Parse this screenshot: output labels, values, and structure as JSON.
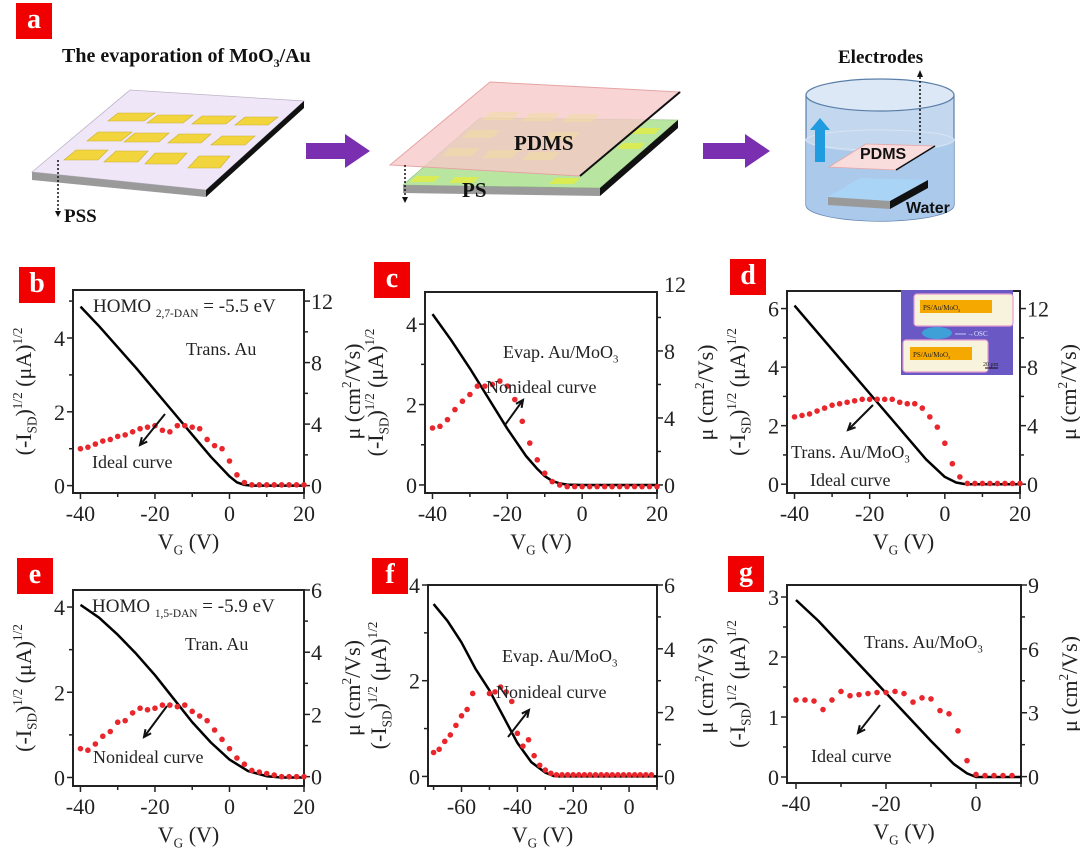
{
  "figure": {
    "panel_a": {
      "label": "a",
      "title_text": "The evaporation of MoO",
      "title_sub": "3",
      "title_suffix": "/Au",
      "pss_label": "PSS",
      "pdms_label": "PDMS",
      "ps_label": "PS",
      "electrodes_label": "Electrodes",
      "pdms_label_2": "PDMS",
      "water_label": "Water",
      "colors": {
        "arrow": "#7a2fb0",
        "gold": "#f2d53c",
        "substrate": "#efe6f7",
        "pdms": "#f6c9c9",
        "ps": "#b8e6a0",
        "water": "#a9c8ea",
        "lift_arrow": "#1f9be0"
      }
    }
  },
  "chart_data": [
    {
      "panel": "b",
      "type": "line+scatter",
      "xlabel": "V",
      "xlabel_sub": "G",
      "xlabel_unit": " (V)",
      "ylabel_left": "(-I",
      "ylabel_left_sub": "SD",
      "ylabel_left_rest": ")",
      "ylabel_left_sup": "1/2",
      "ylabel_left_unit": " (μA)",
      "ylabel_left_sup2": "1/2",
      "ylabel_right": "μ (cm",
      "ylabel_right_sup": "2",
      "ylabel_right_unit": "/Vs)",
      "xlim": [
        -42,
        20
      ],
      "ylim_left": [
        -0.2,
        5.3
      ],
      "ylim_right": [
        -0.48,
        12.72
      ],
      "xticks": [
        -40,
        -20,
        0,
        20
      ],
      "yticks_left": [
        0,
        2,
        4
      ],
      "yticks_right": [
        0,
        4,
        8,
        12
      ],
      "annotations": [
        {
          "text": "HOMO ",
          "sub": "2,7-DAN",
          "suffix": " = -5.5 eV"
        },
        {
          "text": "Trans. Au"
        },
        {
          "text": "Ideal curve"
        }
      ],
      "series": [
        {
          "name": "sqrt(-ISD)",
          "axis": "left",
          "style": "line",
          "color": "#000000",
          "x": [
            -40,
            -35,
            -30,
            -25,
            -20,
            -15,
            -10,
            -5,
            0,
            2,
            4,
            6,
            10,
            15,
            20
          ],
          "y": [
            4.85,
            4.32,
            3.75,
            3.18,
            2.58,
            1.98,
            1.38,
            0.78,
            0.25,
            0.09,
            0.02,
            0.0,
            0.0,
            0.0,
            0.0
          ]
        },
        {
          "name": "mobility",
          "axis": "right",
          "style": "scatter",
          "color": "#e8262b",
          "x": [
            -40,
            -38,
            -36,
            -34,
            -32,
            -30,
            -28,
            -26,
            -24,
            -22,
            -20,
            -18,
            -16,
            -14,
            -12,
            -10,
            -8,
            -6,
            -4,
            -2,
            0,
            2,
            4,
            6,
            8,
            10,
            12,
            14,
            16,
            18,
            20
          ],
          "y": [
            2.4,
            2.5,
            2.7,
            2.9,
            3.0,
            3.2,
            3.3,
            3.5,
            3.7,
            3.8,
            3.9,
            3.6,
            3.5,
            3.9,
            3.9,
            3.8,
            3.7,
            3.0,
            2.6,
            2.4,
            1.6,
            0.7,
            0.2,
            0.05,
            0.05,
            0.05,
            0.05,
            0.05,
            0.05,
            0.05,
            0.05
          ]
        }
      ]
    },
    {
      "panel": "c",
      "type": "line+scatter",
      "xlabel": "V",
      "xlabel_sub": "G",
      "xlabel_unit": " (V)",
      "ylabel_left": "(-I",
      "ylabel_left_sub": "SD",
      "ylabel_left_rest": ")",
      "ylabel_left_sup": "1/2",
      "ylabel_left_unit": " (μA)",
      "ylabel_left_sup2": "1/2",
      "ylabel_right": "μ (cm",
      "ylabel_right_sup": "2",
      "ylabel_right_unit": "/Vs)",
      "xlim": [
        -42,
        20
      ],
      "ylim_left": [
        -0.2,
        4.8
      ],
      "ylim_right": [
        -0.48,
        11.52
      ],
      "xticks": [
        -40,
        -20,
        0,
        20
      ],
      "yticks_left": [
        0,
        2,
        4
      ],
      "yticks_right": [
        0,
        4,
        8,
        12
      ],
      "annotations": [
        {
          "text": "Evap. Au/MoO",
          "sub": "3",
          "suffix": ""
        },
        {
          "text": "Nonideal curve"
        }
      ],
      "series": [
        {
          "name": "sqrt(-ISD)",
          "axis": "left",
          "style": "line",
          "color": "#000000",
          "x": [
            -40,
            -35,
            -30,
            -25,
            -20,
            -15,
            -12,
            -10,
            -8,
            -6,
            -4,
            0,
            5,
            10,
            20
          ],
          "y": [
            4.25,
            3.6,
            2.9,
            2.15,
            1.4,
            0.72,
            0.4,
            0.22,
            0.1,
            0.04,
            0.01,
            0.0,
            0.0,
            0.0,
            0.0
          ]
        },
        {
          "name": "mobility",
          "axis": "right",
          "style": "scatter",
          "color": "#e8262b",
          "x": [
            -40,
            -38,
            -36,
            -34,
            -32,
            -30,
            -28,
            -26,
            -24,
            -22,
            -20,
            -18,
            -16,
            -14,
            -12,
            -10,
            -8,
            -6,
            -4,
            -2,
            0,
            2,
            4,
            6,
            8,
            10,
            12,
            14,
            16,
            18,
            20
          ],
          "y": [
            3.4,
            3.5,
            3.9,
            4.5,
            5.0,
            5.4,
            5.9,
            5.9,
            6.0,
            6.2,
            5.9,
            5.1,
            3.8,
            2.5,
            1.5,
            0.7,
            0.2,
            0.0,
            -0.1,
            -0.1,
            -0.1,
            -0.1,
            -0.1,
            -0.1,
            -0.1,
            -0.1,
            -0.1,
            -0.1,
            -0.1,
            -0.1,
            -0.1
          ]
        }
      ]
    },
    {
      "panel": "d",
      "type": "line+scatter",
      "xlabel": "V",
      "xlabel_sub": "G",
      "xlabel_unit": " (V)",
      "ylabel_left": "(-I",
      "ylabel_left_sub": "SD",
      "ylabel_left_rest": ")",
      "ylabel_left_sup": "1/2",
      "ylabel_left_unit": " (μA)",
      "ylabel_left_sup2": "1/2",
      "ylabel_right": "μ (cm",
      "ylabel_right_sup": "2",
      "ylabel_right_unit": "/Vs)",
      "xlim": [
        -42,
        20
      ],
      "ylim_left": [
        -0.3,
        6.6
      ],
      "ylim_right": [
        -0.6,
        13.2
      ],
      "xticks": [
        -40,
        -20,
        0,
        20
      ],
      "yticks_left": [
        0,
        2,
        4,
        6
      ],
      "yticks_right": [
        0,
        4,
        8,
        12
      ],
      "annotations": [
        {
          "text": "Trans. Au/MoO",
          "sub": "3",
          "suffix": ""
        },
        {
          "text": "Ideal curve"
        }
      ],
      "inset": {
        "label_top": "PS/Au/MoO",
        "label_top_sub": "3",
        "label_bottom": "PS/Au/MoO",
        "label_bottom_sub": "3",
        "osc_label": "OSC",
        "scale_label": "20 μm"
      },
      "series": [
        {
          "name": "sqrt(-ISD)",
          "axis": "left",
          "style": "line",
          "color": "#000000",
          "x": [
            -40,
            -35,
            -30,
            -25,
            -20,
            -15,
            -10,
            -5,
            0,
            3,
            5,
            6,
            10,
            15,
            20
          ],
          "y": [
            6.1,
            5.35,
            4.6,
            3.85,
            3.1,
            2.35,
            1.6,
            0.85,
            0.25,
            0.06,
            0.01,
            0.0,
            0.0,
            0.0,
            0.0
          ]
        },
        {
          "name": "mobility",
          "axis": "right",
          "style": "scatter",
          "color": "#e8262b",
          "x": [
            -40,
            -38,
            -36,
            -34,
            -32,
            -30,
            -28,
            -26,
            -24,
            -22,
            -20,
            -18,
            -16,
            -14,
            -12,
            -10,
            -8,
            -6,
            -4,
            -2,
            0,
            2,
            4,
            6,
            8,
            10,
            12,
            14,
            16,
            18,
            20
          ],
          "y": [
            4.6,
            4.7,
            4.8,
            5.0,
            5.2,
            5.4,
            5.5,
            5.6,
            5.7,
            5.8,
            5.8,
            5.8,
            5.8,
            5.8,
            5.6,
            5.5,
            5.5,
            5.2,
            4.6,
            3.9,
            2.8,
            1.4,
            0.5,
            0.05,
            0.05,
            0.05,
            0.05,
            0.05,
            0.05,
            0.05,
            0.05
          ]
        }
      ]
    },
    {
      "panel": "e",
      "type": "line+scatter",
      "xlabel": "V",
      "xlabel_sub": "G",
      "xlabel_unit": " (V)",
      "ylabel_left": "(-I",
      "ylabel_left_sub": "SD",
      "ylabel_left_rest": ")",
      "ylabel_left_sup": "1/2",
      "ylabel_left_unit": " (μA)",
      "ylabel_left_sup2": "1/2",
      "ylabel_right": "μ (cm",
      "ylabel_right_sup": "2",
      "ylabel_right_unit": "/Vs)",
      "xlim": [
        -42,
        20
      ],
      "ylim_left": [
        -0.2,
        4.4
      ],
      "ylim_right": [
        -0.3,
        6.0
      ],
      "xticks": [
        -40,
        -20,
        0,
        20
      ],
      "yticks_left": [
        0,
        2,
        4
      ],
      "yticks_right": [
        0,
        2,
        4,
        6
      ],
      "annotations": [
        {
          "text": "HOMO ",
          "sub": "1,5-DAN",
          "suffix": " = -5.9 eV"
        },
        {
          "text": "Tran. Au"
        },
        {
          "text": "Nonideal curve"
        }
      ],
      "series": [
        {
          "name": "sqrt(-ISD)",
          "axis": "left",
          "style": "line",
          "color": "#000000",
          "x": [
            -40,
            -35,
            -30,
            -25,
            -20,
            -15,
            -10,
            -5,
            0,
            5,
            10,
            14,
            16,
            20
          ],
          "y": [
            4.05,
            3.75,
            3.35,
            2.9,
            2.4,
            1.85,
            1.3,
            0.82,
            0.42,
            0.15,
            0.03,
            0.0,
            0.0,
            0.0
          ]
        },
        {
          "name": "mobility",
          "axis": "right",
          "style": "scatter",
          "color": "#e8262b",
          "x": [
            -40,
            -38,
            -36,
            -34,
            -32,
            -30,
            -28,
            -26,
            -24,
            -22,
            -20,
            -18,
            -16,
            -14,
            -12,
            -10,
            -8,
            -6,
            -4,
            -2,
            0,
            2,
            4,
            6,
            8,
            10,
            12,
            14,
            16,
            18,
            20
          ],
          "y": [
            0.9,
            0.85,
            1.05,
            1.3,
            1.45,
            1.75,
            1.8,
            2.05,
            2.2,
            2.15,
            2.2,
            2.3,
            2.3,
            2.25,
            2.3,
            2.1,
            1.95,
            1.8,
            1.5,
            1.2,
            0.9,
            0.6,
            0.4,
            0.2,
            0.15,
            0.1,
            0.05,
            0.0,
            0.0,
            0.0,
            0.0
          ]
        }
      ]
    },
    {
      "panel": "f",
      "type": "line+scatter",
      "xlabel": "V",
      "xlabel_sub": "G",
      "xlabel_unit": " (V)",
      "ylabel_left": "(-I",
      "ylabel_left_sub": "SD",
      "ylabel_left_rest": ")",
      "ylabel_left_sup": "1/2",
      "ylabel_left_unit": " (μA)",
      "ylabel_left_sup2": "1/2",
      "ylabel_right": "μ (cm",
      "ylabel_right_sup": "2",
      "ylabel_right_unit": "/Vs)",
      "xlim": [
        -72,
        10
      ],
      "ylim_left": [
        -0.2,
        4.0
      ],
      "ylim_right": [
        -0.3,
        6.0
      ],
      "xticks": [
        -60,
        -40,
        -20,
        0
      ],
      "yticks_left": [
        0,
        2,
        4
      ],
      "yticks_right": [
        0,
        2,
        4,
        6
      ],
      "annotations": [
        {
          "text": "Evap. Au/MoO",
          "sub": "3",
          "suffix": ""
        },
        {
          "text": "Nonideal curve"
        }
      ],
      "series": [
        {
          "name": "sqrt(-ISD)",
          "axis": "left",
          "style": "line",
          "color": "#000000",
          "x": [
            -70,
            -65,
            -60,
            -55,
            -50,
            -45,
            -40,
            -35,
            -30,
            -27,
            -25,
            -20,
            -10,
            0,
            10
          ],
          "y": [
            3.6,
            3.25,
            2.8,
            2.25,
            1.8,
            1.25,
            0.7,
            0.3,
            0.08,
            0.01,
            0.0,
            0.0,
            0.0,
            0.0,
            0.0
          ]
        },
        {
          "name": "mobility",
          "axis": "right",
          "style": "scatter",
          "color": "#e8262b",
          "x": [
            -70,
            -68,
            -66,
            -64,
            -62,
            -60,
            -58,
            -56,
            -50,
            -48,
            -46,
            -44,
            -42,
            -40,
            -38,
            -36,
            -34,
            -32,
            -30,
            -28,
            -26,
            -24,
            -22,
            -20,
            -18,
            -16,
            -14,
            -12,
            -10,
            -8,
            -6,
            -4,
            -2,
            0,
            2,
            4,
            6,
            8
          ],
          "y": [
            0.75,
            0.85,
            1.1,
            1.3,
            1.6,
            1.9,
            2.1,
            2.6,
            2.6,
            2.65,
            2.8,
            2.65,
            2.35,
            1.35,
            0.95,
            1.15,
            0.65,
            0.35,
            0.2,
            0.1,
            0.05,
            0.05,
            0.05,
            0.05,
            0.05,
            0.05,
            0.05,
            0.05,
            0.05,
            0.05,
            0.05,
            0.05,
            0.05,
            0.05,
            0.05,
            0.05,
            0.05,
            0.05
          ]
        }
      ]
    },
    {
      "panel": "g",
      "type": "line+scatter",
      "xlabel": "V",
      "xlabel_sub": "G",
      "xlabel_unit": " (V)",
      "ylabel_left": "(-I",
      "ylabel_left_sub": "SD",
      "ylabel_left_rest": ")",
      "ylabel_left_sup": "1/2",
      "ylabel_left_unit": " (μA)",
      "ylabel_left_sup2": "1/2",
      "ylabel_right": "μ (cm",
      "ylabel_right_sup": "2",
      "ylabel_right_unit": "/Vs)",
      "xlim": [
        -42,
        10
      ],
      "ylim_left": [
        -0.1,
        3.2
      ],
      "ylim_right": [
        -0.3,
        9.0
      ],
      "xticks": [
        -40,
        -20,
        0
      ],
      "yticks_left": [
        0,
        1,
        2,
        3
      ],
      "yticks_right": [
        0,
        3,
        6,
        9
      ],
      "annotations": [
        {
          "text": "Trans. Au/MoO",
          "sub": "3",
          "suffix": ""
        },
        {
          "text": "Ideal curve"
        }
      ],
      "series": [
        {
          "name": "sqrt(-ISD)",
          "axis": "left",
          "style": "line",
          "color": "#000000",
          "x": [
            -40,
            -35,
            -30,
            -25,
            -20,
            -15,
            -10,
            -5,
            -2,
            0,
            2,
            5,
            10
          ],
          "y": [
            2.95,
            2.6,
            2.2,
            1.8,
            1.4,
            1.0,
            0.6,
            0.22,
            0.06,
            0.0,
            0.0,
            0.0,
            0.0
          ]
        },
        {
          "name": "mobility",
          "axis": "right",
          "style": "scatter",
          "color": "#e8262b",
          "x": [
            -40,
            -38,
            -36,
            -34,
            -32,
            -30,
            -28,
            -26,
            -24,
            -22,
            -20,
            -18,
            -16,
            -14,
            -12,
            -10,
            -8,
            -6,
            -4,
            -2,
            0,
            2,
            4,
            6,
            8
          ],
          "y": [
            3.6,
            3.6,
            3.55,
            3.15,
            3.6,
            4.0,
            3.8,
            3.85,
            3.9,
            3.95,
            3.95,
            4.0,
            3.9,
            3.5,
            3.7,
            3.65,
            3.1,
            2.95,
            2.15,
            0.75,
            0.1,
            0.05,
            0.05,
            0.05,
            0.05
          ]
        }
      ]
    }
  ]
}
